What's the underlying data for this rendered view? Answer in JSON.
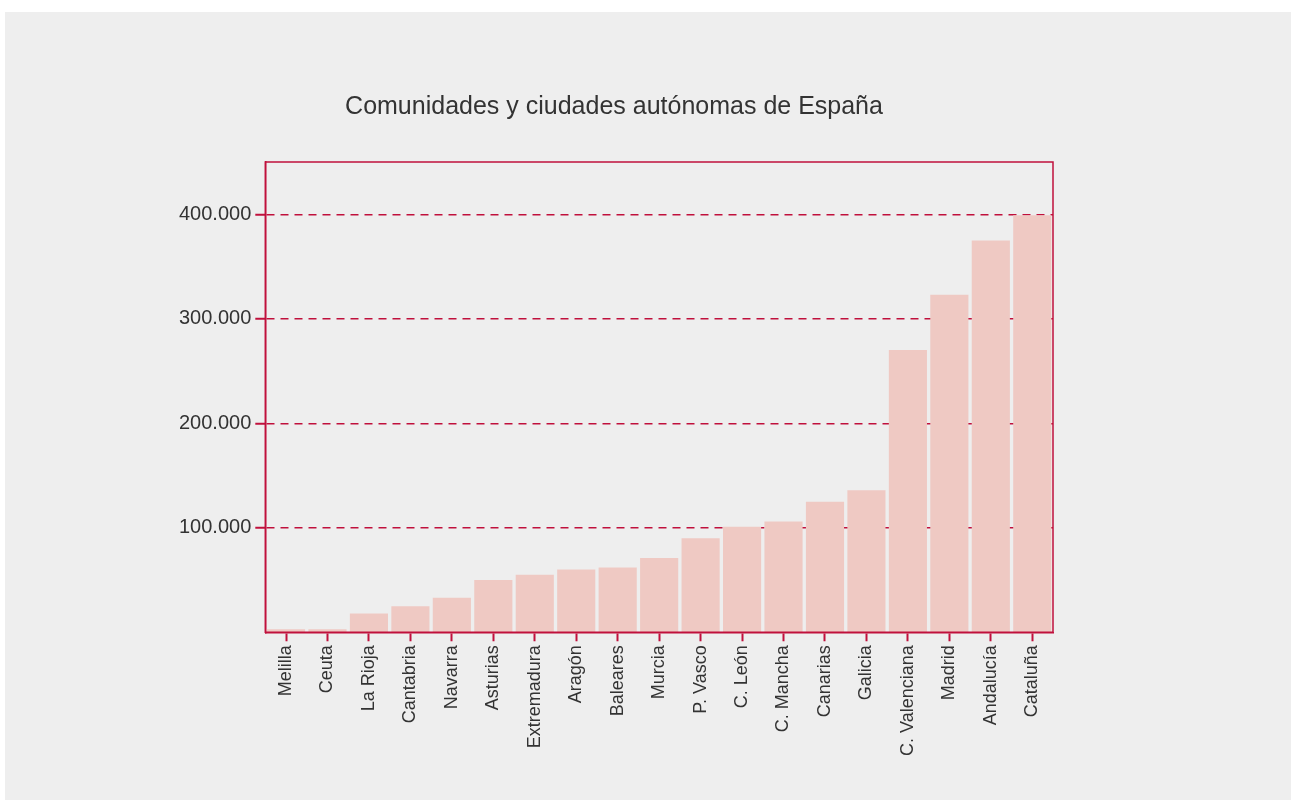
{
  "chart_data": {
    "type": "bar",
    "title": "Comunidades y ciudades autónomas de España",
    "categories": [
      "Melilla",
      "Ceuta",
      "La Rioja",
      "Cantabria",
      "Navarra",
      "Asturias",
      "Extremadura",
      "Aragón",
      "Baleares",
      "Murcia",
      "P. Vasco",
      "C. León",
      "C. Mancha",
      "Canarias",
      "Galicia",
      "C. Valenciana",
      "Madrid",
      "Andalucía",
      "Cataluña"
    ],
    "values": [
      3000,
      3000,
      18000,
      25000,
      33000,
      50000,
      55000,
      60000,
      62000,
      71000,
      90000,
      101000,
      106000,
      125000,
      136000,
      270000,
      323000,
      375000,
      399000
    ],
    "color": "#efc9c3",
    "ylim": [
      0,
      450000
    ],
    "yticks": [
      {
        "value": 100000,
        "label": "100.000"
      },
      {
        "value": 200000,
        "label": "200.000"
      },
      {
        "value": 300000,
        "label": "300.000"
      },
      {
        "value": 400000,
        "label": "400.000"
      }
    ],
    "grid": "y",
    "line_style": "dashed"
  }
}
